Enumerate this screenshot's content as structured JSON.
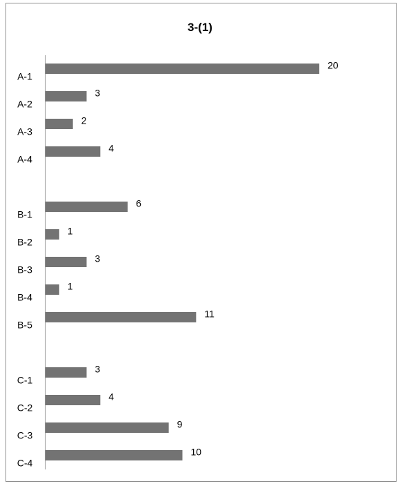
{
  "chart_data": {
    "type": "bar",
    "orientation": "horizontal",
    "title": "3-(1)",
    "xlabel": "",
    "ylabel": "",
    "xlim": [
      0,
      20
    ],
    "grid": false,
    "legend": "none",
    "bar_color": "#737373",
    "categories": [
      "A-1",
      "A-2",
      "A-3",
      "A-4",
      "",
      "B-1",
      "B-2",
      "B-3",
      "B-4",
      "B-5",
      "",
      "C-1",
      "C-2",
      "C-3",
      "C-4"
    ],
    "values": [
      20,
      3,
      2,
      4,
      null,
      6,
      1,
      3,
      1,
      11,
      null,
      3,
      4,
      9,
      10
    ]
  }
}
